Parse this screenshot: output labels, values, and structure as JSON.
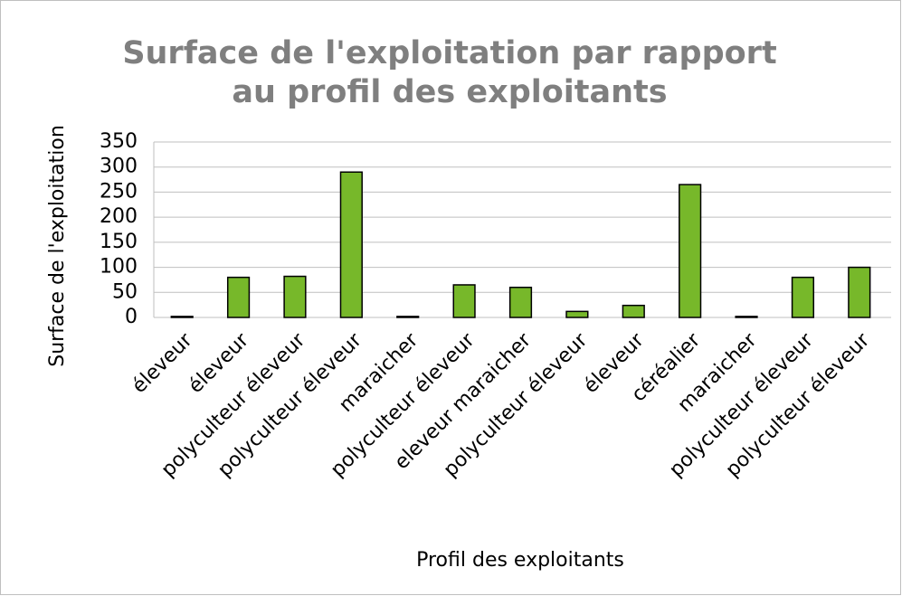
{
  "chart_data": {
    "type": "bar",
    "title": [
      "Surface de l'exploitation par rapport",
      "au profil des exploitants"
    ],
    "x_label": "Profil des exploitants",
    "y_label": "Surface de l'exploitation",
    "categories": [
      "éleveur",
      "éleveur",
      "polyculteur éleveur",
      "polyculteur éleveur",
      "maraicher",
      "polyculteur éleveur",
      "eleveur maraicher",
      "polyculteur éleveur",
      "éleveur",
      "céréalier",
      "maraicher",
      "polyculteur éleveur",
      "polyculteur éleveur"
    ],
    "values": [
      2,
      80,
      82,
      290,
      2,
      65,
      60,
      12,
      24,
      265,
      2,
      80,
      100
    ],
    "color": "#77b82a",
    "ylim": [
      0,
      350
    ],
    "yticks": [
      0,
      50,
      100,
      150,
      200,
      250,
      300,
      350
    ],
    "grid": true
  }
}
